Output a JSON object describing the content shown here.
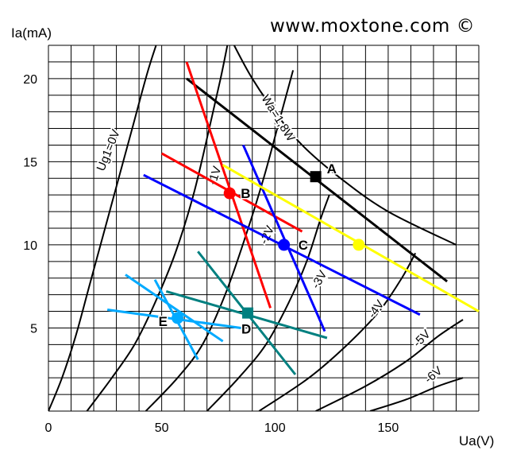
{
  "watermark": "www.moxtone.com ©",
  "chart_data": {
    "type": "line",
    "title": "",
    "xlabel": "Ua(V)",
    "ylabel": "Ia(mA)",
    "xlim": [
      0,
      190
    ],
    "ylim": [
      0,
      22
    ],
    "x_ticks": [
      0,
      50,
      100,
      150
    ],
    "y_ticks": [
      5,
      10,
      15,
      20
    ],
    "grid": true,
    "grid_step": {
      "x": 10,
      "y": 1
    },
    "grid_color": "#000000",
    "curves": [
      {
        "name": "Ug1=0V",
        "points": [
          [
            0,
            0
          ],
          [
            6,
            2
          ],
          [
            12,
            4.5
          ],
          [
            18,
            7.5
          ],
          [
            24,
            10.5
          ],
          [
            31,
            14
          ],
          [
            37,
            17
          ],
          [
            44,
            20.5
          ],
          [
            50,
            23
          ]
        ]
      },
      {
        "name": "-1V",
        "points": [
          [
            17,
            0
          ],
          [
            28,
            2
          ],
          [
            38,
            4
          ],
          [
            47,
            6.5
          ],
          [
            56,
            9.5
          ],
          [
            64,
            13
          ],
          [
            71,
            17
          ],
          [
            76,
            20
          ],
          [
            79,
            22
          ]
        ]
      },
      {
        "name": "-2V",
        "points": [
          [
            43,
            0
          ],
          [
            57,
            2
          ],
          [
            68,
            4
          ],
          [
            78,
            7
          ],
          [
            87,
            10.5
          ],
          [
            95,
            14
          ],
          [
            102,
            17.5
          ],
          [
            108,
            20.5
          ]
        ]
      },
      {
        "name": "-3V",
        "points": [
          [
            70,
            0
          ],
          [
            84,
            2
          ],
          [
            96,
            4
          ],
          [
            106,
            6.5
          ],
          [
            114,
            9
          ],
          [
            120,
            11.5
          ],
          [
            124,
            13
          ]
        ]
      },
      {
        "name": "-4V",
        "points": [
          [
            93,
            0
          ],
          [
            115,
            2
          ],
          [
            132,
            4
          ],
          [
            146,
            6
          ],
          [
            156,
            8
          ],
          [
            162,
            9.5
          ]
        ]
      },
      {
        "name": "-5V",
        "points": [
          [
            118,
            0
          ],
          [
            140,
            1.5
          ],
          [
            158,
            3
          ],
          [
            172,
            4.5
          ],
          [
            183,
            5.5
          ]
        ]
      },
      {
        "name": "-6V",
        "points": [
          [
            142,
            0
          ],
          [
            158,
            0.7
          ],
          [
            172,
            1.5
          ],
          [
            183,
            2
          ]
        ]
      }
    ],
    "power_curve": {
      "name": "Wa=1,8W",
      "points": [
        [
          75,
          24
        ],
        [
          82,
          22
        ],
        [
          90,
          20
        ],
        [
          100,
          18
        ],
        [
          112,
          16
        ],
        [
          129,
          14
        ],
        [
          150,
          12
        ],
        [
          180,
          10
        ]
      ]
    },
    "load_lines": [
      {
        "color": "#000000",
        "points": [
          [
            61,
            20
          ],
          [
            176,
            7.8
          ]
        ]
      },
      {
        "color": "#ff0000",
        "points": [
          [
            61,
            21
          ],
          [
            98,
            6.2
          ]
        ]
      },
      {
        "color": "#ff0000",
        "points": [
          [
            50,
            15.5
          ],
          [
            112,
            10.8
          ]
        ]
      },
      {
        "color": "#0000ff",
        "points": [
          [
            86,
            16
          ],
          [
            122,
            4.8
          ]
        ]
      },
      {
        "color": "#0000ff",
        "points": [
          [
            42,
            14.2
          ],
          [
            164,
            5.8
          ]
        ]
      },
      {
        "color": "#ffff00",
        "points": [
          [
            77,
            14.8
          ],
          [
            190,
            6
          ]
        ]
      },
      {
        "color": "#008080",
        "points": [
          [
            66,
            9.6
          ],
          [
            109,
            2.2
          ]
        ]
      },
      {
        "color": "#008080",
        "points": [
          [
            52,
            7.2
          ],
          [
            123,
            4.4
          ]
        ]
      },
      {
        "color": "#00aaff",
        "points": [
          [
            47,
            7.9
          ],
          [
            66,
            3.1
          ]
        ]
      },
      {
        "color": "#00aaff",
        "points": [
          [
            34,
            8.2
          ],
          [
            77,
            4.2
          ]
        ]
      },
      {
        "color": "#00aaff",
        "points": [
          [
            26,
            6.1
          ],
          [
            85,
            5.0
          ]
        ]
      }
    ],
    "points": [
      {
        "label": "A",
        "x": 118,
        "y": 14.1,
        "color": "#000000",
        "shape": "square"
      },
      {
        "label": "B",
        "x": 80,
        "y": 13.1,
        "color": "#ff0000",
        "shape": "circle"
      },
      {
        "label": "C",
        "x": 104,
        "y": 10.0,
        "color": "#0000ff",
        "shape": "circle"
      },
      {
        "label": "",
        "x": 137,
        "y": 10.0,
        "color": "#ffff00",
        "shape": "circle"
      },
      {
        "label": "D",
        "x": 88,
        "y": 5.9,
        "color": "#008080",
        "shape": "square"
      },
      {
        "label": "E",
        "x": 57,
        "y": 5.6,
        "color": "#00aaff",
        "shape": "circle"
      }
    ]
  }
}
